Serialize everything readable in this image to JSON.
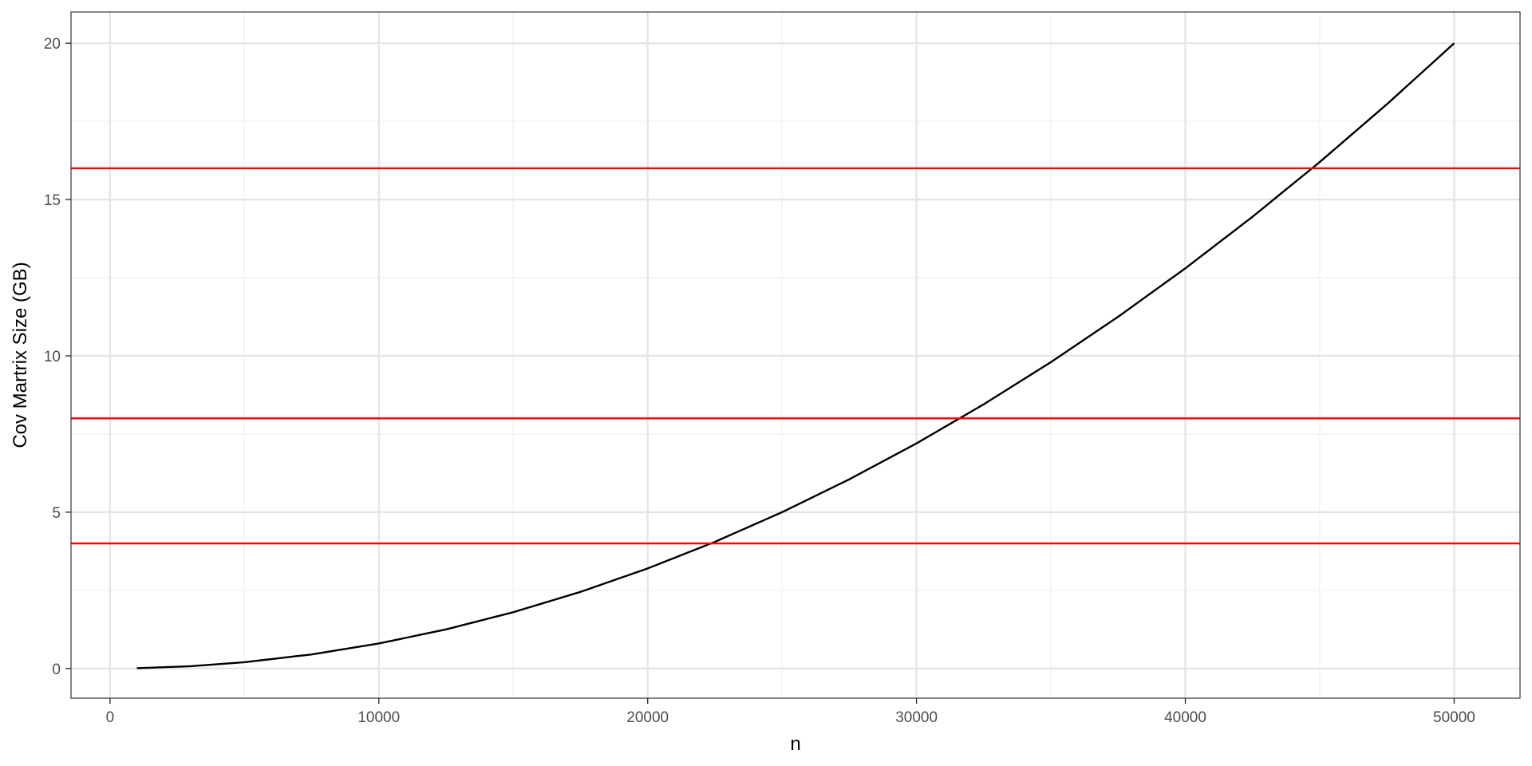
{
  "chart_data": {
    "type": "line",
    "title": "",
    "xlabel": "n",
    "ylabel": "Cov Martrix Size (GB)",
    "xlim": [
      -1450,
      52450
    ],
    "ylim": [
      -0.95,
      21.0
    ],
    "x_ticks": [
      0,
      10000,
      20000,
      30000,
      40000,
      50000
    ],
    "x_minor_ticks": [
      5000,
      15000,
      25000,
      35000,
      45000
    ],
    "y_ticks": [
      0,
      5,
      10,
      15,
      20
    ],
    "y_minor_ticks": [
      2.5,
      7.5,
      12.5,
      17.5
    ],
    "x_tick_labels": [
      "0",
      "10000",
      "20000",
      "30000",
      "40000",
      "50000"
    ],
    "y_tick_labels": [
      "0",
      "5",
      "10",
      "15",
      "20"
    ],
    "grid": true,
    "series": [
      {
        "color": "#000000",
        "x": [
          1000,
          3000,
          5000,
          7500,
          10000,
          12500,
          15000,
          17500,
          20000,
          22500,
          25000,
          27500,
          30000,
          32500,
          35000,
          37500,
          40000,
          42500,
          45000,
          47500,
          50000
        ],
        "y": [
          0.008,
          0.072,
          0.2,
          0.45,
          0.8,
          1.25,
          1.8,
          2.45,
          3.2,
          4.05,
          5.0,
          6.05,
          7.2,
          8.45,
          9.8,
          11.25,
          12.8,
          14.45,
          16.2,
          18.05,
          20.0
        ]
      }
    ],
    "hlines": [
      {
        "y": 4,
        "color": "#ff0000"
      },
      {
        "y": 8,
        "color": "#ff0000"
      },
      {
        "y": 16,
        "color": "#ff0000"
      }
    ],
    "colors": {
      "panel_border": "#333333",
      "major_grid": "#e5e5e5",
      "minor_grid": "#f2f2f2",
      "tick": "#333333",
      "background": "#ffffff"
    }
  }
}
